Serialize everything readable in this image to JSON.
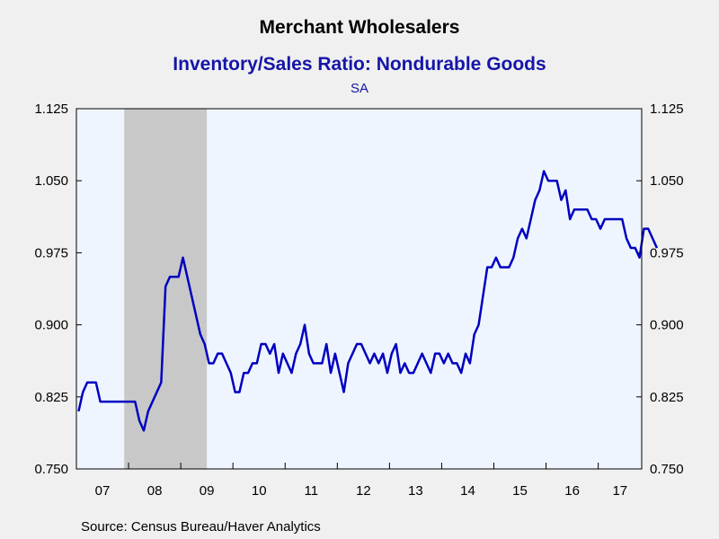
{
  "chart_data": {
    "type": "line",
    "title": "Merchant Wholesalers",
    "subtitle": "Inventory/Sales Ratio: Nondurable Goods",
    "note": "SA",
    "source": "Source:  Census Bureau/Haver Analytics",
    "x_tick_labels": [
      "07",
      "08",
      "09",
      "10",
      "11",
      "12",
      "13",
      "14",
      "15",
      "16",
      "17"
    ],
    "y_ticks": [
      "0.750",
      "0.825",
      "0.900",
      "0.975",
      "1.050",
      "1.125"
    ],
    "ylim": [
      0.75,
      1.125
    ],
    "xlim": [
      "2007-01",
      "2017-10"
    ],
    "recession": {
      "start": "2007-12",
      "end": "2009-06"
    },
    "grid": false,
    "colors": {
      "line": "#0000c0",
      "plot_bg": "#eef5ff",
      "recession": "#c8c8c8",
      "page_bg": "#f0f0f0"
    },
    "series": [
      {
        "start": "2007-01",
        "frequency": "monthly",
        "values": [
          0.81,
          0.83,
          0.84,
          0.84,
          0.84,
          0.82,
          0.82,
          0.82,
          0.82,
          0.82,
          0.82,
          0.82,
          0.82,
          0.82,
          0.8,
          0.79,
          0.81,
          0.82,
          0.83,
          0.84,
          0.94,
          0.95,
          0.95,
          0.95,
          0.97,
          0.95,
          0.93,
          0.91,
          0.89,
          0.88,
          0.86,
          0.86,
          0.87,
          0.87,
          0.86,
          0.85,
          0.83,
          0.83,
          0.85,
          0.85,
          0.86,
          0.86,
          0.88,
          0.88,
          0.87,
          0.88,
          0.85,
          0.87,
          0.86,
          0.85,
          0.87,
          0.88,
          0.9,
          0.87,
          0.86,
          0.86,
          0.86,
          0.88,
          0.85,
          0.87,
          0.85,
          0.83,
          0.86,
          0.87,
          0.88,
          0.88,
          0.87,
          0.86,
          0.87,
          0.86,
          0.87,
          0.85,
          0.87,
          0.88,
          0.85,
          0.86,
          0.85,
          0.85,
          0.86,
          0.87,
          0.86,
          0.85,
          0.87,
          0.87,
          0.86,
          0.87,
          0.86,
          0.86,
          0.85,
          0.87,
          0.86,
          0.89,
          0.9,
          0.93,
          0.96,
          0.96,
          0.97,
          0.96,
          0.96,
          0.96,
          0.97,
          0.99,
          1.0,
          0.99,
          1.01,
          1.03,
          1.04,
          1.06,
          1.05,
          1.05,
          1.05,
          1.03,
          1.04,
          1.01,
          1.02,
          1.02,
          1.02,
          1.02,
          1.01,
          1.01,
          1.0,
          1.01,
          1.01,
          1.01,
          1.01,
          1.01,
          0.99,
          0.98,
          0.98,
          0.97,
          1.0,
          1.0,
          0.99,
          0.98
        ]
      }
    ]
  }
}
